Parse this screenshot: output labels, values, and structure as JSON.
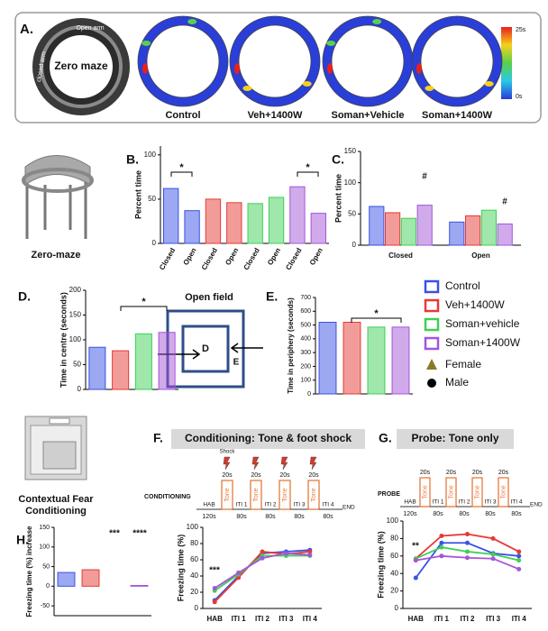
{
  "heatmaps": {
    "panel": "A.",
    "maze_title": "Zero maze",
    "open_arm": "Open arm",
    "closed_arm": "closed arm",
    "labels": [
      "Control",
      "Veh+1400W",
      "Soman+Vehicle",
      "Soman+1400W"
    ],
    "scale_max": "25s",
    "scale_min": "0s"
  },
  "zero_maze_label": "Zero-maze",
  "open_field": {
    "title": "Open field",
    "centre": "D",
    "periphery": "E"
  },
  "legend": {
    "items": [
      {
        "name": "Control",
        "color": "#3a52e4"
      },
      {
        "name": "Veh+1400W",
        "color": "#e63a36"
      },
      {
        "name": "Soman+vehicle",
        "color": "#3fcf57"
      },
      {
        "name": "Soman+1400W",
        "color": "#a455d8"
      }
    ],
    "female": "Female",
    "male": "Male"
  },
  "fear_conditioning_label": "Contextual Fear Conditioning",
  "conditioning": {
    "panel": "F.",
    "title": "Conditioning: Tone & foot shock",
    "label": "CONDITIONING",
    "shock": "Shock",
    "items": [
      {
        "label": "HAB",
        "duration": "120s"
      },
      {
        "label": "Tone",
        "duration": "20s"
      },
      {
        "label": "ITI 1",
        "duration": "80s"
      },
      {
        "label": "Tone",
        "duration": "20s"
      },
      {
        "label": "ITI 2",
        "duration": "80s"
      },
      {
        "label": "Tone",
        "duration": "20s"
      },
      {
        "label": "ITI 3",
        "duration": "80s"
      },
      {
        "label": "Tone",
        "duration": "20s"
      },
      {
        "label": "ITI 4",
        "duration": "80s"
      }
    ],
    "end": "END"
  },
  "probe": {
    "panel": "G.",
    "title": "Probe: Tone only",
    "label": "PROBE",
    "items": [
      {
        "label": "HAB",
        "duration": "120s"
      },
      {
        "label": "Tone",
        "duration": "20s"
      },
      {
        "label": "ITI 1",
        "duration": "80s"
      },
      {
        "label": "Tone",
        "duration": "20s"
      },
      {
        "label": "ITI 2",
        "duration": "80s"
      },
      {
        "label": "Tone",
        "duration": "20s"
      },
      {
        "label": "ITI 3",
        "duration": "80s"
      },
      {
        "label": "Tone",
        "duration": "20s"
      },
      {
        "label": "ITI 4",
        "duration": "80s"
      }
    ],
    "end": "END"
  },
  "chart_data": [
    {
      "type": "bar",
      "panel": "B.",
      "y_label": "Percent time",
      "categories": [
        "Closed",
        "Open",
        "Closed",
        "Open",
        "Closed",
        "Open",
        "Closed",
        "Open"
      ],
      "values": [
        62,
        37,
        50,
        46,
        45,
        52,
        64,
        34
      ],
      "colors": [
        "#3a52e4",
        "#3a52e4",
        "#e63a36",
        "#e63a36",
        "#3fcf57",
        "#3fcf57",
        "#a455d8",
        "#a455d8"
      ],
      "ylim": [
        0,
        110
      ],
      "yticks": [
        0,
        50,
        100
      ],
      "annotations": [
        "*",
        "*"
      ]
    },
    {
      "type": "grouped_bar",
      "panel": "C.",
      "y_label": "Percent time",
      "categories": [
        "Closed",
        "Open"
      ],
      "series": [
        {
          "color": "#3a52e4",
          "values": [
            62,
            37
          ]
        },
        {
          "color": "#e63a36",
          "values": [
            52,
            47
          ]
        },
        {
          "color": "#3fcf57",
          "values": [
            43,
            56
          ]
        },
        {
          "color": "#a455d8",
          "values": [
            64,
            34
          ]
        }
      ],
      "ylim": [
        0,
        150
      ],
      "yticks": [
        0,
        50,
        100,
        150
      ],
      "annotations": [
        "#",
        "#"
      ]
    },
    {
      "type": "bar",
      "panel": "D.",
      "y_label": "Time in centre (seconds)",
      "values": [
        85,
        78,
        112,
        115
      ],
      "colors": [
        "#3a52e4",
        "#e63a36",
        "#3fcf57",
        "#a455d8"
      ],
      "ylim": [
        0,
        200
      ],
      "yticks": [
        0,
        50,
        100,
        150,
        200
      ],
      "annotations": [
        "*"
      ]
    },
    {
      "type": "bar",
      "panel": "E.",
      "y_label": "Time in periphery (seconds)",
      "values": [
        520,
        520,
        485,
        485
      ],
      "colors": [
        "#3a52e4",
        "#e63a36",
        "#3fcf57",
        "#a455d8"
      ],
      "ylim": [
        0,
        700
      ],
      "yticks": [
        0,
        100,
        200,
        300,
        400,
        500,
        600,
        700
      ],
      "annotations": [
        "*"
      ]
    },
    {
      "type": "line",
      "y_label": "Freezing time (%)",
      "categories": [
        "HAB",
        "ITI 1",
        "ITI 2",
        "ITI 3",
        "ITI 4"
      ],
      "series": [
        {
          "color": "#3a52e4",
          "values": [
            10,
            40,
            68,
            70,
            72
          ]
        },
        {
          "color": "#e63a36",
          "values": [
            8,
            38,
            70,
            67,
            70
          ]
        },
        {
          "color": "#3fcf57",
          "values": [
            22,
            42,
            65,
            65,
            65
          ]
        },
        {
          "color": "#a455d8",
          "values": [
            25,
            44,
            62,
            68,
            66
          ]
        }
      ],
      "ylim": [
        0,
        100
      ],
      "yticks": [
        0,
        20,
        40,
        60,
        80,
        100
      ],
      "annotations": [
        "***"
      ]
    },
    {
      "type": "line",
      "y_label": "Freezing time (%)",
      "categories": [
        "HAB",
        "ITI 1",
        "ITI 2",
        "ITI 3",
        "ITI 4"
      ],
      "series": [
        {
          "color": "#3a52e4",
          "values": [
            35,
            75,
            75,
            63,
            60
          ]
        },
        {
          "color": "#e63a36",
          "values": [
            57,
            83,
            85,
            80,
            65
          ]
        },
        {
          "color": "#3fcf57",
          "values": [
            57,
            70,
            65,
            62,
            55
          ]
        },
        {
          "color": "#a455d8",
          "values": [
            55,
            60,
            58,
            57,
            45
          ]
        }
      ],
      "ylim": [
        0,
        100
      ],
      "yticks": [
        0,
        20,
        40,
        60,
        80,
        100
      ],
      "annotations": [
        "**"
      ]
    },
    {
      "type": "bar",
      "panel": "H.",
      "y_label": "Freezing time (%) increase",
      "values": [
        35,
        42,
        0,
        2
      ],
      "colors": [
        "#3a52e4",
        "#e63a36",
        "#3fcf57",
        "#a455d8"
      ],
      "ylim": [
        -75,
        150
      ],
      "yticks": [
        -50,
        0,
        50,
        100,
        150
      ],
      "annotations": [
        "***",
        "****"
      ]
    }
  ]
}
